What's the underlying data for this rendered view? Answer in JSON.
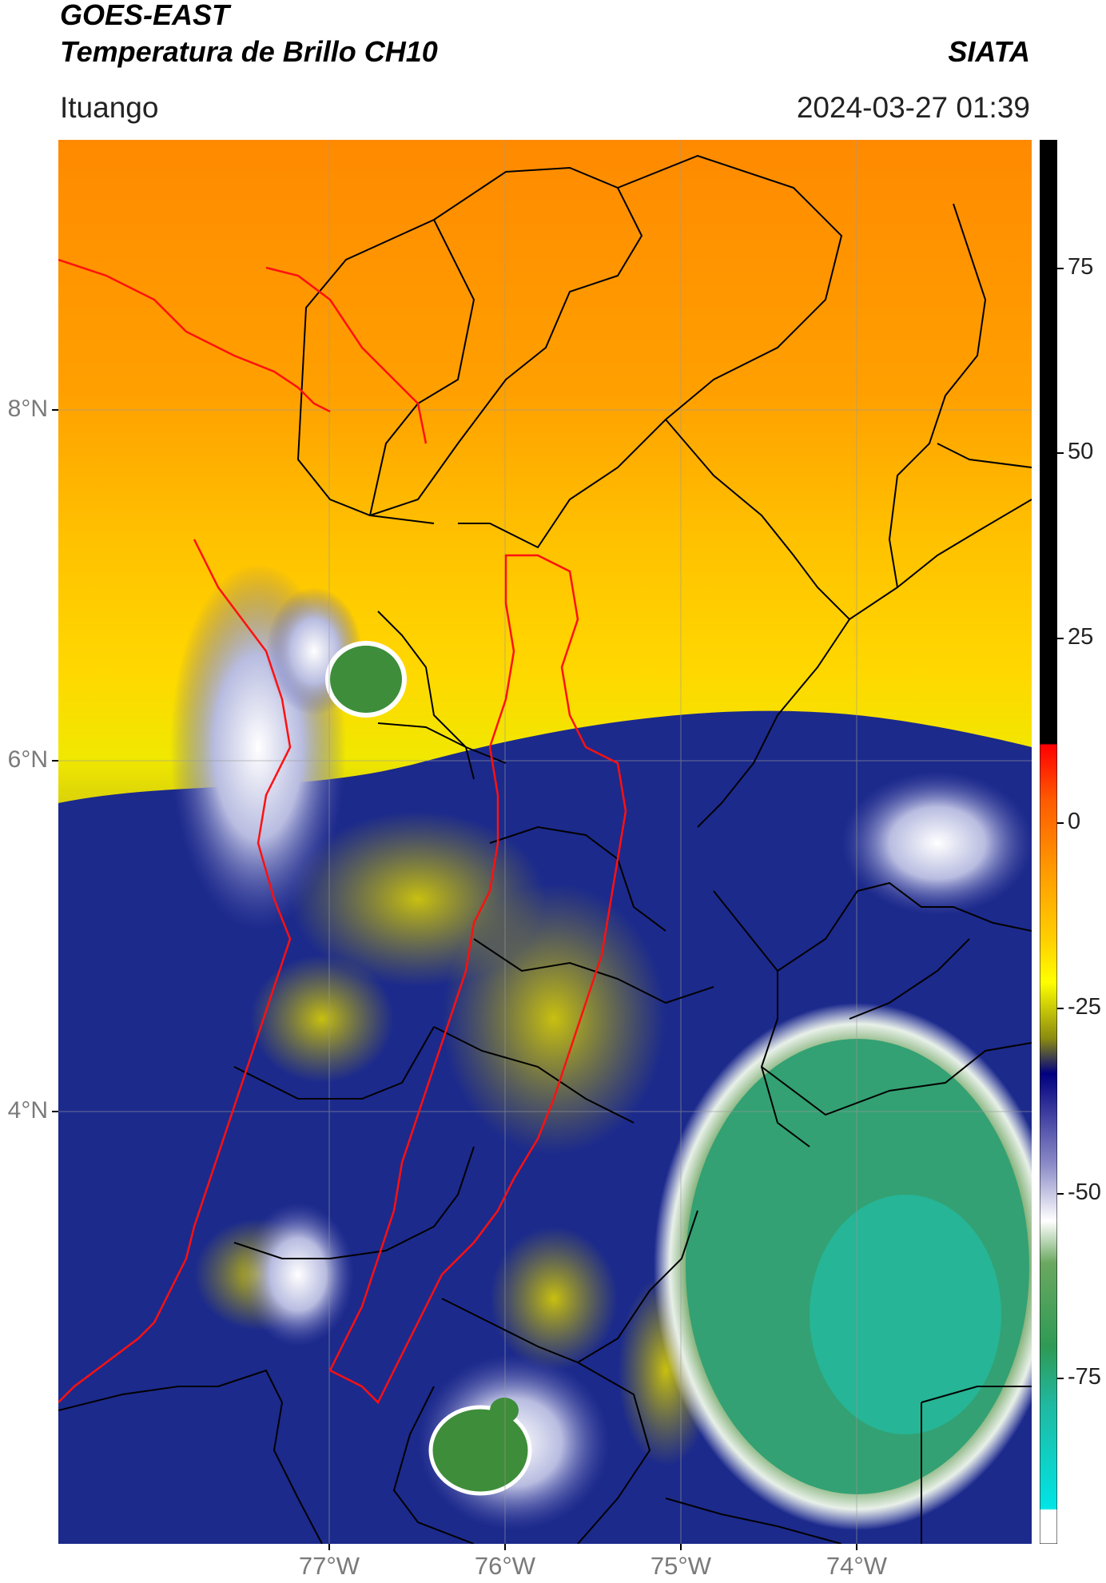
{
  "header": {
    "title_line1": "GOES-EAST",
    "title_line2": "Temperatura de Brillo CH10",
    "brand": "SIATA",
    "location": "Ituango",
    "datetime": "2024-03-27 01:39"
  },
  "map": {
    "lat_labels": [
      "8°N",
      "6°N",
      "4°N"
    ],
    "lon_labels": [
      "77°W",
      "76°W",
      "75°W",
      "74°W"
    ],
    "grid": true
  },
  "colorbar": {
    "labels": [
      "75",
      "50",
      "25",
      "0",
      "-25",
      "-50",
      "-75"
    ],
    "range": [
      -95,
      90
    ],
    "colors": {
      "black": "#000000",
      "red": "#ff0000",
      "orange": "#ff8c00",
      "yellow": "#ffff00",
      "olive": "#8b8b00",
      "navy": "#000080",
      "white": "#ffffff",
      "green": "#3b8f35",
      "cyan": "#00e5e5"
    }
  }
}
